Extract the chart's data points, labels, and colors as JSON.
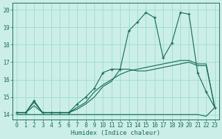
{
  "xlabel": "Humidex (Indice chaleur)",
  "xlim": [
    -0.5,
    23.5
  ],
  "ylim": [
    13.7,
    20.4
  ],
  "yticks": [
    14,
    15,
    16,
    17,
    18,
    19,
    20
  ],
  "xticks": [
    0,
    1,
    2,
    3,
    4,
    5,
    6,
    7,
    8,
    9,
    10,
    11,
    12,
    13,
    14,
    15,
    16,
    17,
    18,
    19,
    20,
    21,
    22,
    23
  ],
  "bg_color": "#cceee8",
  "grid_color": "#99ddcc",
  "line_color": "#1a6b5a",
  "line1_y": [
    14.1,
    14.1,
    14.7,
    14.1,
    14.1,
    14.1,
    14.1,
    14.3,
    14.6,
    15.0,
    15.6,
    15.9,
    16.6,
    16.6,
    16.5,
    16.5,
    16.6,
    16.7,
    16.8,
    16.9,
    17.0,
    16.8,
    16.8,
    14.4
  ],
  "line2_y": [
    14.1,
    14.1,
    14.5,
    14.1,
    14.1,
    14.1,
    14.1,
    14.4,
    14.7,
    15.3,
    15.7,
    16.0,
    16.3,
    16.5,
    16.6,
    16.7,
    16.8,
    16.9,
    17.0,
    17.1,
    17.1,
    16.9,
    16.9,
    14.4
  ],
  "line3_y": [
    14.1,
    14.1,
    14.8,
    14.1,
    14.1,
    14.1,
    14.1,
    14.6,
    15.0,
    15.5,
    16.4,
    16.6,
    16.6,
    18.8,
    19.3,
    19.85,
    19.55,
    17.25,
    18.1,
    19.85,
    19.75,
    16.4,
    15.3,
    14.4
  ],
  "line4_y": [
    14.0,
    14.0,
    14.0,
    14.0,
    14.0,
    14.0,
    14.0,
    14.0,
    14.0,
    14.0,
    14.0,
    14.0,
    14.0,
    14.0,
    14.0,
    14.0,
    14.0,
    14.0,
    14.0,
    14.0,
    14.0,
    14.0,
    13.9,
    14.4
  ]
}
